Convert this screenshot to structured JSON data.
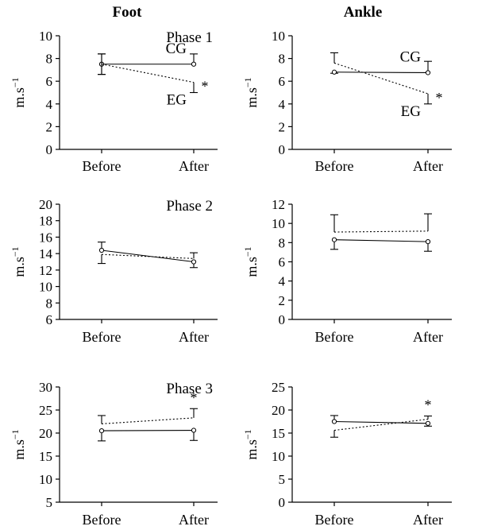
{
  "column_titles": [
    "Foot",
    "Ankle"
  ],
  "chart_data": [
    {
      "type": "line",
      "column": "Foot",
      "row": 1,
      "annotation": "Phase 1",
      "categories": [
        "Before",
        "After"
      ],
      "ylabel": "m.s",
      "ylabel_sup": "−1",
      "ylim": [
        0,
        10
      ],
      "yticks": [
        0,
        2,
        4,
        6,
        8,
        10
      ],
      "series": [
        {
          "name": "CG",
          "style": "solid",
          "values": [
            7.5,
            7.5
          ],
          "errors": [
            0.9,
            0.9
          ],
          "error_dir": [
            "both",
            "up"
          ]
        },
        {
          "name": "EG",
          "style": "dotted",
          "values": [
            7.5,
            5.9
          ],
          "errors": [
            0.9,
            0.9
          ],
          "error_dir": [
            "both",
            "down"
          ]
        }
      ],
      "series_labels": [
        "CG",
        "EG"
      ],
      "significance": "*"
    },
    {
      "type": "line",
      "column": "Ankle",
      "row": 1,
      "annotation": "",
      "categories": [
        "Before",
        "After"
      ],
      "ylabel": "m.s",
      "ylabel_sup": "−1",
      "ylim": [
        0,
        10
      ],
      "yticks": [
        0,
        2,
        4,
        6,
        8,
        10
      ],
      "series": [
        {
          "name": "CG",
          "style": "solid",
          "values": [
            6.8,
            6.75
          ],
          "errors": [
            0.1,
            1.0
          ],
          "error_dir": [
            "down",
            "up"
          ]
        },
        {
          "name": "EG",
          "style": "dotted",
          "values": [
            7.6,
            4.9
          ],
          "errors": [
            0.9,
            0.9
          ],
          "error_dir": [
            "up",
            "down"
          ]
        }
      ],
      "series_labels": [
        "CG",
        "EG"
      ],
      "significance": "*"
    },
    {
      "type": "line",
      "column": "Foot",
      "row": 2,
      "annotation": "Phase 2",
      "categories": [
        "Before",
        "After"
      ],
      "ylabel": "m.s",
      "ylabel_sup": "−1",
      "ylim": [
        6,
        20
      ],
      "yticks": [
        6,
        8,
        10,
        12,
        14,
        16,
        18,
        20
      ],
      "series": [
        {
          "name": "CG",
          "style": "solid",
          "values": [
            14.4,
            13.0
          ],
          "errors": [
            1.0,
            0.7
          ],
          "error_dir": [
            "up",
            "down"
          ]
        },
        {
          "name": "EG",
          "style": "dotted",
          "values": [
            13.9,
            13.4
          ],
          "errors": [
            1.1,
            0.7
          ],
          "error_dir": [
            "down",
            "up"
          ]
        }
      ],
      "series_labels": [],
      "significance": ""
    },
    {
      "type": "line",
      "column": "Ankle",
      "row": 2,
      "annotation": "",
      "categories": [
        "Before",
        "After"
      ],
      "ylabel": "m.s",
      "ylabel_sup": "−1",
      "ylim": [
        0,
        12
      ],
      "yticks": [
        0,
        2,
        4,
        6,
        8,
        10,
        12
      ],
      "series": [
        {
          "name": "CG",
          "style": "solid",
          "values": [
            8.3,
            8.1
          ],
          "errors": [
            1.0,
            1.0
          ],
          "error_dir": [
            "down",
            "down"
          ]
        },
        {
          "name": "EG",
          "style": "dotted",
          "values": [
            9.1,
            9.2
          ],
          "errors": [
            1.8,
            1.8
          ],
          "error_dir": [
            "up",
            "up"
          ]
        }
      ],
      "series_labels": [],
      "significance": ""
    },
    {
      "type": "line",
      "column": "Foot",
      "row": 3,
      "annotation": "Phase 3",
      "categories": [
        "Before",
        "After"
      ],
      "ylabel": "m.s",
      "ylabel_sup": "−1",
      "ylim": [
        5,
        30
      ],
      "yticks": [
        5,
        10,
        15,
        20,
        25,
        30
      ],
      "series": [
        {
          "name": "CG",
          "style": "solid",
          "values": [
            20.5,
            20.6
          ],
          "errors": [
            2.2,
            2.2
          ],
          "error_dir": [
            "down",
            "down"
          ]
        },
        {
          "name": "EG",
          "style": "dotted",
          "values": [
            22.0,
            23.3
          ],
          "errors": [
            1.8,
            2.0
          ],
          "error_dir": [
            "up",
            "up"
          ]
        }
      ],
      "series_labels": [],
      "significance": "*"
    },
    {
      "type": "line",
      "column": "Ankle",
      "row": 3,
      "annotation": "",
      "categories": [
        "Before",
        "After"
      ],
      "ylabel": "m.s",
      "ylabel_sup": "−1",
      "ylim": [
        0,
        25
      ],
      "yticks": [
        0,
        5,
        10,
        15,
        20,
        25
      ],
      "series": [
        {
          "name": "CG",
          "style": "solid",
          "values": [
            17.5,
            17.1
          ],
          "errors": [
            1.3,
            0.6
          ],
          "error_dir": [
            "up",
            "down"
          ]
        },
        {
          "name": "EG",
          "style": "dotted",
          "values": [
            15.6,
            18.0
          ],
          "errors": [
            1.5,
            0.7
          ],
          "error_dir": [
            "down",
            "up"
          ]
        }
      ],
      "series_labels": [],
      "significance": "*"
    }
  ]
}
